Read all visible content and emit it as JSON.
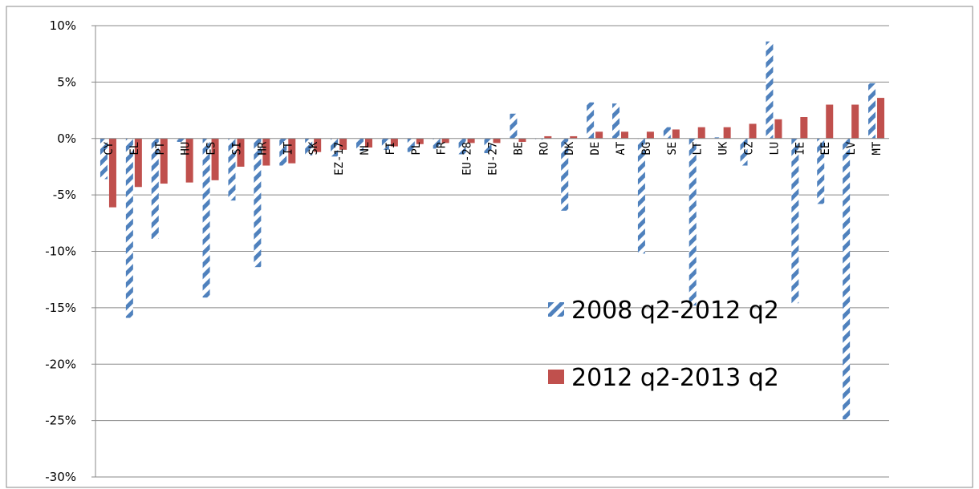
{
  "chart_data": {
    "type": "bar",
    "title": "",
    "xlabel": "",
    "ylabel": "",
    "ylim": [
      -30,
      10
    ],
    "yticks": [
      10,
      5,
      0,
      -5,
      -10,
      -15,
      -20,
      -25,
      -30
    ],
    "ytick_format": "%",
    "grid": true,
    "legend_position": "bottom-right",
    "categories": [
      "CY",
      "EL",
      "PT",
      "HU",
      "ES",
      "SI",
      "HR",
      "IT",
      "SK",
      "EZ-17",
      "NL",
      "FI",
      "PL",
      "FR",
      "EU-28",
      "EU-27",
      "BE",
      "RO",
      "DK",
      "DE",
      "AT",
      "BG",
      "SE",
      "LT",
      "UK",
      "CZ",
      "LU",
      "IE",
      "EE",
      "LV",
      "MT"
    ],
    "series": [
      {
        "name": "2008 q2-2012 q2",
        "color": "#4F81BD",
        "pattern": "diagonal-stripes",
        "values": [
          -3.6,
          -15.9,
          -8.9,
          -0.3,
          -14.1,
          -5.5,
          -11.4,
          -2.4,
          -1.5,
          -1.6,
          -1.1,
          -1.0,
          -1.2,
          -0.9,
          -1.4,
          -1.3,
          2.2,
          -0.1,
          -6.4,
          3.2,
          3.1,
          -10.2,
          1.0,
          -14.8,
          0.1,
          -2.4,
          8.6,
          -14.6,
          -5.8,
          -24.9,
          4.9
        ]
      },
      {
        "name": "2012 q2-2013 q2",
        "color": "#C0504D",
        "pattern": "solid",
        "values": [
          -6.1,
          -4.3,
          -4.0,
          -3.9,
          -3.7,
          -2.5,
          -2.4,
          -2.2,
          -1.2,
          -1.0,
          -0.8,
          -0.7,
          -0.5,
          -0.4,
          -0.4,
          -0.4,
          -0.3,
          0.2,
          0.2,
          0.6,
          0.6,
          0.6,
          0.8,
          1.0,
          1.0,
          1.3,
          1.7,
          1.9,
          3.0,
          3.0,
          3.6
        ]
      }
    ]
  }
}
